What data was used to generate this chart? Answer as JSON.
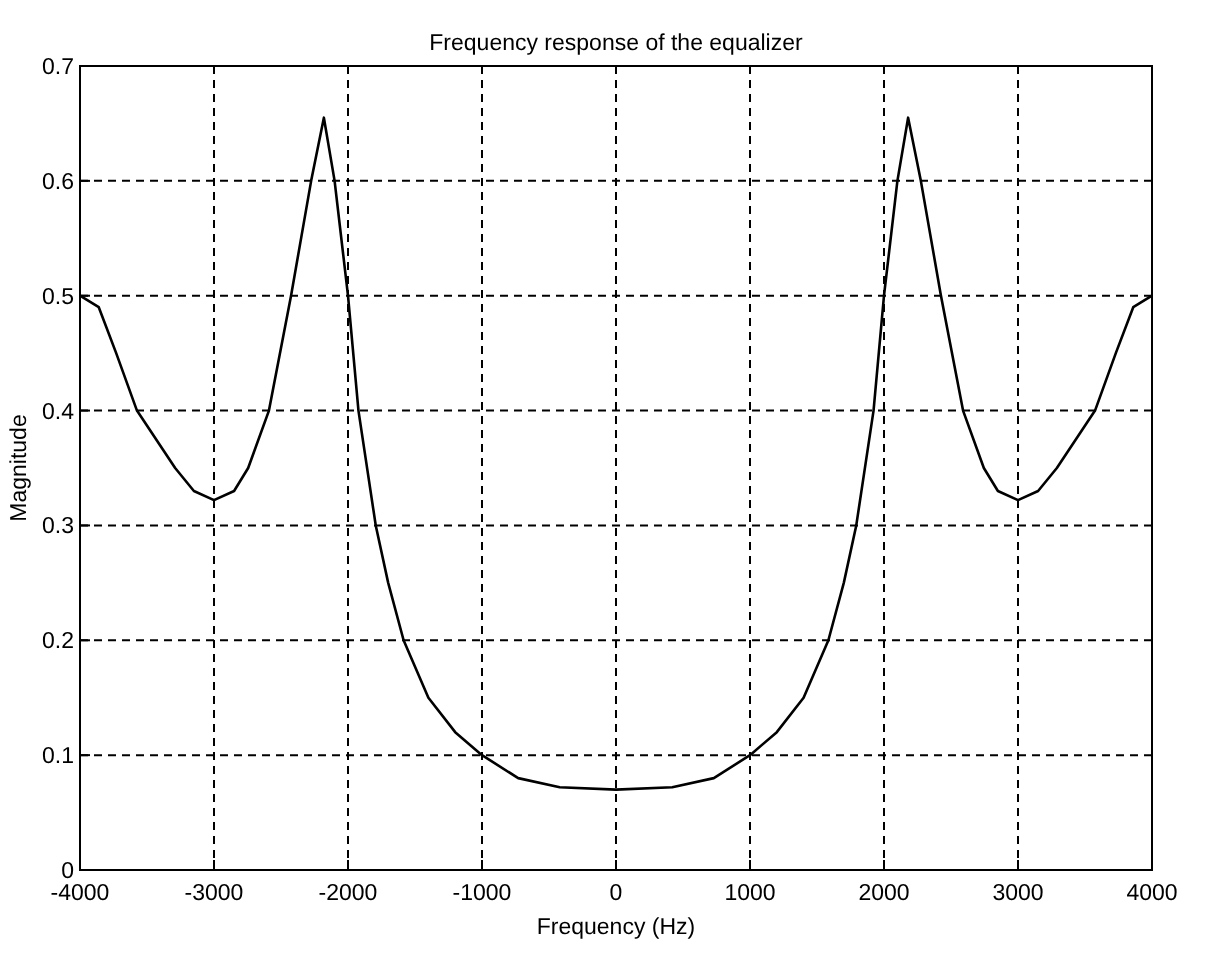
{
  "chart_data": {
    "type": "line",
    "title": "Frequency response of the equalizer",
    "xlabel": "Frequency (Hz)",
    "ylabel": "Magnitude",
    "x": [
      -4000,
      -3860,
      -3730,
      -3575,
      -3290,
      -3150,
      -3000,
      -2850,
      -2745,
      -2590,
      -2425,
      -2275,
      -2180,
      -2100,
      -2000,
      -1922,
      -1793,
      -1700,
      -1585,
      -1400,
      -1200,
      -1000,
      -730,
      -420,
      0,
      420,
      730,
      1000,
      1200,
      1400,
      1585,
      1700,
      1793,
      1922,
      2000,
      2100,
      2180,
      2275,
      2425,
      2590,
      2745,
      2850,
      3000,
      3150,
      3290,
      3575,
      3730,
      3860,
      4000
    ],
    "series": [
      {
        "color": "#000000",
        "values": [
          0.5,
          0.49,
          0.45,
          0.4,
          0.35,
          0.33,
          0.322,
          0.33,
          0.35,
          0.4,
          0.5,
          0.6,
          0.655,
          0.6,
          0.5,
          0.4,
          0.3,
          0.25,
          0.2,
          0.15,
          0.12,
          0.1,
          0.08,
          0.072,
          0.07,
          0.072,
          0.08,
          0.1,
          0.12,
          0.15,
          0.2,
          0.25,
          0.3,
          0.4,
          0.5,
          0.6,
          0.655,
          0.6,
          0.5,
          0.4,
          0.35,
          0.33,
          0.322,
          0.33,
          0.35,
          0.4,
          0.45,
          0.49,
          0.5
        ]
      }
    ],
    "xlim": [
      -4000,
      4000
    ],
    "xticks": [
      -4000,
      -3000,
      -2000,
      -1000,
      0,
      1000,
      2000,
      3000,
      4000
    ],
    "ylim": [
      0,
      0.7
    ],
    "yticks": [
      0,
      0.1,
      0.2,
      0.3,
      0.4,
      0.5,
      0.6,
      0.7
    ],
    "grid": true,
    "marker": "none",
    "line_style": "solid"
  }
}
